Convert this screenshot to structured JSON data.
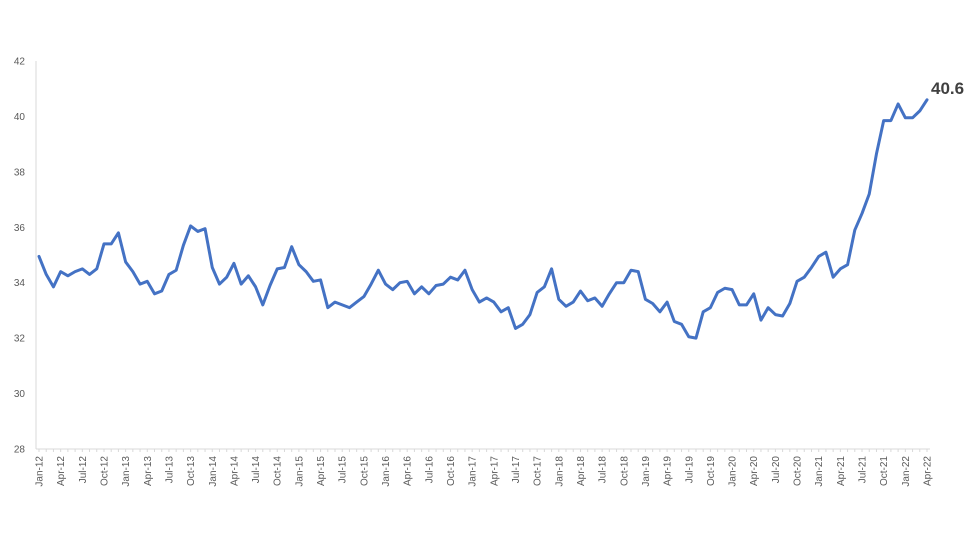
{
  "chart_data": {
    "type": "line",
    "title": "",
    "xlabel": "",
    "ylabel": "",
    "ylim": [
      28,
      42
    ],
    "yticks": [
      28,
      30,
      32,
      34,
      36,
      38,
      40,
      42
    ],
    "grid": false,
    "legend": "none",
    "line_color": "#4472C4",
    "end_label": "40.6",
    "x_tick_labels": [
      "Jan-12",
      "Apr-12",
      "Jul-12",
      "Oct-12",
      "Jan-13",
      "Apr-13",
      "Jul-13",
      "Oct-13",
      "Jan-14",
      "Apr-14",
      "Jul-14",
      "Oct-14",
      "Jan-15",
      "Apr-15",
      "Jul-15",
      "Oct-15",
      "Jan-16",
      "Apr-16",
      "Jul-16",
      "Oct-16",
      "Jan-17",
      "Apr-17",
      "Jul-17",
      "Oct-17",
      "Jan-18",
      "Apr-18",
      "Jul-18",
      "Oct-18",
      "Jan-19",
      "Apr-19",
      "Jul-19",
      "Oct-19",
      "Jan-20",
      "Apr-20",
      "Jul-20",
      "Oct-20",
      "Jan-21",
      "Apr-21",
      "Jul-21",
      "Oct-21",
      "Jan-22",
      "Apr-22"
    ],
    "x": [
      "2012-01",
      "2012-02",
      "2012-03",
      "2012-04",
      "2012-05",
      "2012-06",
      "2012-07",
      "2012-08",
      "2012-09",
      "2012-10",
      "2012-11",
      "2012-12",
      "2013-01",
      "2013-02",
      "2013-03",
      "2013-04",
      "2013-05",
      "2013-06",
      "2013-07",
      "2013-08",
      "2013-09",
      "2013-10",
      "2013-11",
      "2013-12",
      "2014-01",
      "2014-02",
      "2014-03",
      "2014-04",
      "2014-05",
      "2014-06",
      "2014-07",
      "2014-08",
      "2014-09",
      "2014-10",
      "2014-11",
      "2014-12",
      "2015-01",
      "2015-02",
      "2015-03",
      "2015-04",
      "2015-05",
      "2015-06",
      "2015-07",
      "2015-08",
      "2015-09",
      "2015-10",
      "2015-11",
      "2015-12",
      "2016-01",
      "2016-02",
      "2016-03",
      "2016-04",
      "2016-05",
      "2016-06",
      "2016-07",
      "2016-08",
      "2016-09",
      "2016-10",
      "2016-11",
      "2016-12",
      "2017-01",
      "2017-02",
      "2017-03",
      "2017-04",
      "2017-05",
      "2017-06",
      "2017-07",
      "2017-08",
      "2017-09",
      "2017-10",
      "2017-11",
      "2017-12",
      "2018-01",
      "2018-02",
      "2018-03",
      "2018-04",
      "2018-05",
      "2018-06",
      "2018-07",
      "2018-08",
      "2018-09",
      "2018-10",
      "2018-11",
      "2018-12",
      "2019-01",
      "2019-02",
      "2019-03",
      "2019-04",
      "2019-05",
      "2019-06",
      "2019-07",
      "2019-08",
      "2019-09",
      "2019-10",
      "2019-11",
      "2019-12",
      "2020-01",
      "2020-02",
      "2020-03",
      "2020-04",
      "2020-05",
      "2020-06",
      "2020-07",
      "2020-08",
      "2020-09",
      "2020-10",
      "2020-11",
      "2020-12",
      "2021-01",
      "2021-02",
      "2021-03",
      "2021-04",
      "2021-05",
      "2021-06",
      "2021-07",
      "2021-08",
      "2021-09",
      "2021-10",
      "2021-11",
      "2021-12",
      "2022-01",
      "2022-02",
      "2022-03",
      "2022-04"
    ],
    "series": [
      {
        "values": [
          34.95,
          34.3,
          33.85,
          34.4,
          34.25,
          34.4,
          34.5,
          34.3,
          34.5,
          35.4,
          35.4,
          35.8,
          34.75,
          34.4,
          33.95,
          34.05,
          33.6,
          33.7,
          34.3,
          34.45,
          35.35,
          36.05,
          35.85,
          35.95,
          34.55,
          33.95,
          34.2,
          34.7,
          33.95,
          34.25,
          33.85,
          33.2,
          33.9,
          34.5,
          34.55,
          35.3,
          34.65,
          34.4,
          34.05,
          34.1,
          33.1,
          33.3,
          33.2,
          33.1,
          33.3,
          33.5,
          33.95,
          34.45,
          33.95,
          33.75,
          34.0,
          34.05,
          33.6,
          33.85,
          33.6,
          33.9,
          33.95,
          34.2,
          34.1,
          34.45,
          33.75,
          33.3,
          33.45,
          33.3,
          32.95,
          33.1,
          32.35,
          32.5,
          32.85,
          33.65,
          33.85,
          34.5,
          33.4,
          33.15,
          33.3,
          33.7,
          33.35,
          33.45,
          33.15,
          33.6,
          34.0,
          34.0,
          34.45,
          34.4,
          33.4,
          33.25,
          32.95,
          33.3,
          32.6,
          32.5,
          32.05,
          32.0,
          32.95,
          33.1,
          33.65,
          33.8,
          33.75,
          33.2,
          33.2,
          33.6,
          32.65,
          33.1,
          32.85,
          32.8,
          33.25,
          34.05,
          34.2,
          34.55,
          34.95,
          35.1,
          34.2,
          34.5,
          34.65,
          35.9,
          36.5,
          37.2,
          38.65,
          39.85,
          39.85,
          40.45,
          39.95,
          39.95,
          40.2,
          40.6
        ]
      }
    ]
  }
}
